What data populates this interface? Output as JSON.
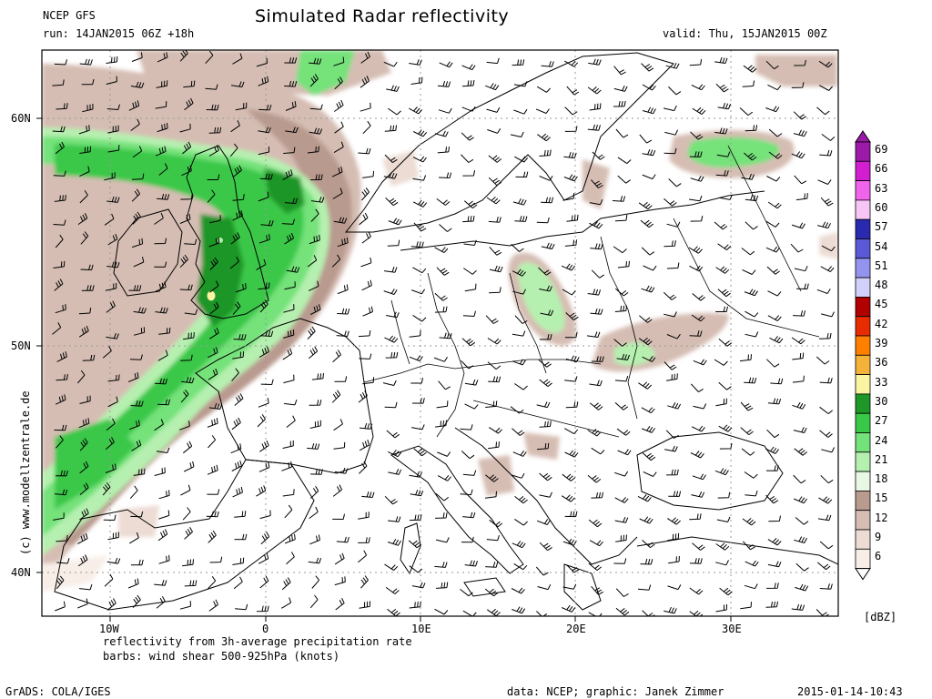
{
  "header": {
    "model": "NCEP GFS",
    "title": "Simulated Radar reflectivity",
    "run": "run: 14JAN2015 06Z +18h",
    "valid": "valid: Thu, 15JAN2015 00Z"
  },
  "axes": {
    "lat_labels": [
      "60N",
      "50N",
      "40N"
    ],
    "lon_labels": [
      "10W",
      "0",
      "10E",
      "20E",
      "30E"
    ]
  },
  "colorbar": {
    "unit": "[dBZ]",
    "levels": [
      {
        "value": "69",
        "color": "#9b1aa8"
      },
      {
        "value": "66",
        "color": "#d21ed0"
      },
      {
        "value": "63",
        "color": "#f064ec"
      },
      {
        "value": "60",
        "color": "#f8c6f6"
      },
      {
        "value": "57",
        "color": "#2a2ab0"
      },
      {
        "value": "54",
        "color": "#5a5ad8"
      },
      {
        "value": "51",
        "color": "#9494ee"
      },
      {
        "value": "48",
        "color": "#d0d0fa"
      },
      {
        "value": "45",
        "color": "#b00000"
      },
      {
        "value": "42",
        "color": "#e62c00"
      },
      {
        "value": "39",
        "color": "#ff7f00"
      },
      {
        "value": "36",
        "color": "#f4b23a"
      },
      {
        "value": "33",
        "color": "#fbf4a0"
      },
      {
        "value": "30",
        "color": "#1e9628"
      },
      {
        "value": "27",
        "color": "#3ac848"
      },
      {
        "value": "24",
        "color": "#74e27a"
      },
      {
        "value": "21",
        "color": "#b6f0b0"
      },
      {
        "value": "18",
        "color": "#e8f8e4"
      },
      {
        "value": "15",
        "color": "#b99a8f"
      },
      {
        "value": "12",
        "color": "#d5bdb3"
      },
      {
        "value": "9",
        "color": "#ecdcd4"
      },
      {
        "value": "6",
        "color": "#f8eee8"
      }
    ]
  },
  "footer": {
    "line1": "reflectivity from 3h-average precipitation rate",
    "line2": "barbs: wind shear 500-925hPa (knots)",
    "grads": "GrADS: COLA/IGES",
    "credit": "data: NCEP; graphic: Janek Zimmer",
    "timestamp": "2015-01-14-10:43",
    "copyright": "(c)  www.modellzentrale.de"
  }
}
